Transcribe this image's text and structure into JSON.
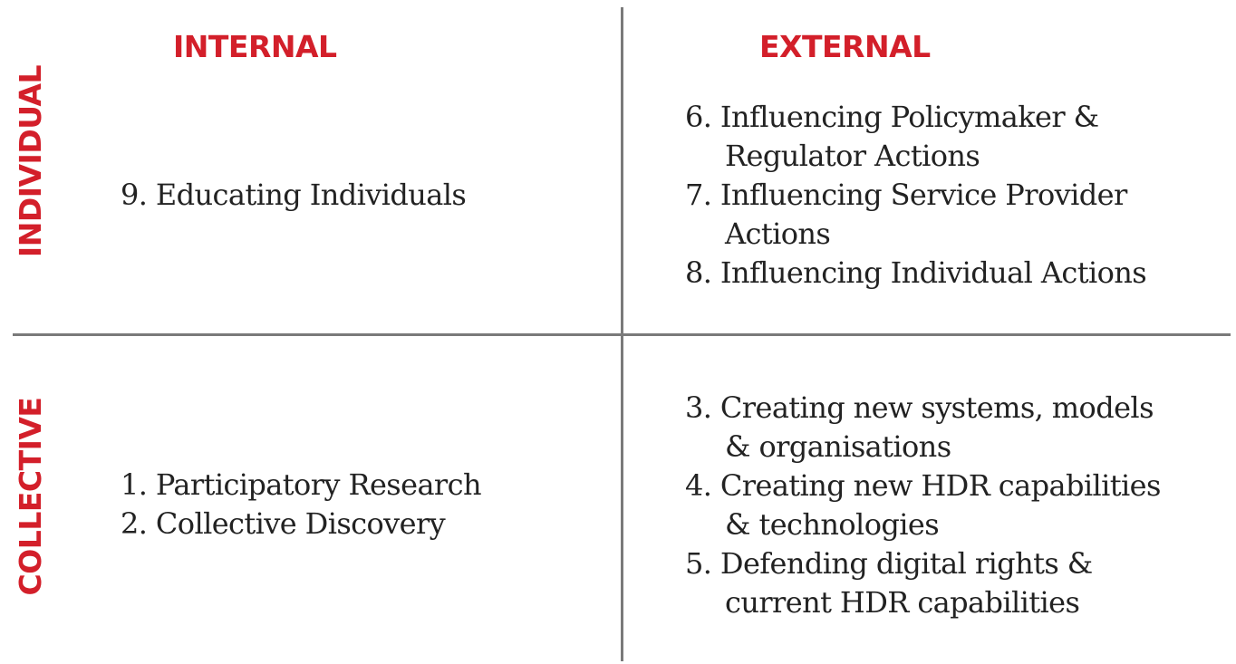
{
  "columns": {
    "internal": "INTERNAL",
    "external": "EXTERNAL"
  },
  "rows": {
    "individual": "INDIVIDUAL",
    "collective": "COLLECTIVE"
  },
  "cells": {
    "individual_internal": [
      {
        "line1": "9. Educating Individuals",
        "line2": ""
      }
    ],
    "individual_external": [
      {
        "line1": "6. Influencing Policymaker &",
        "line2": "Regulator Actions"
      },
      {
        "line1": "7. Influencing Service Provider",
        "line2": "Actions"
      },
      {
        "line1": "8. Influencing Individual Actions",
        "line2": ""
      }
    ],
    "collective_internal": [
      {
        "line1": "1. Participatory Research",
        "line2": ""
      },
      {
        "line1": "2. Collective Discovery",
        "line2": ""
      }
    ],
    "collective_external": [
      {
        "line1": "3. Creating new systems, models",
        "line2": "& organisations"
      },
      {
        "line1": "4. Creating new HDR capabilities",
        "line2": "& technologies"
      },
      {
        "line1": "5. Defending digital rights &",
        "line2": "current HDR capabilities"
      }
    ]
  },
  "colors": {
    "accent": "#d31f2a",
    "divider": "#7a7a7a",
    "text": "#222222"
  }
}
